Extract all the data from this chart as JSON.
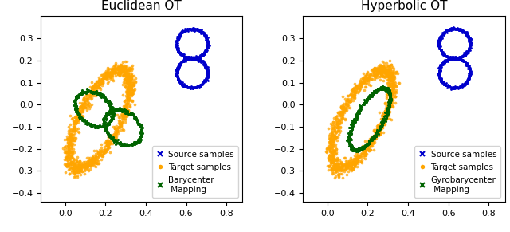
{
  "title_left": "Euclidean OT",
  "title_right": "Hyperbolic OT",
  "xlim": [
    -0.12,
    0.88
  ],
  "ylim": [
    -0.44,
    0.4
  ],
  "xticks": [
    0.0,
    0.2,
    0.4,
    0.6,
    0.8
  ],
  "yticks": [
    -0.4,
    -0.3,
    -0.2,
    -0.1,
    0.0,
    0.1,
    0.2,
    0.3
  ],
  "source_color": "#0000cc",
  "target_color": "#ffa500",
  "barycenter_color": "#006400",
  "figsize": [
    6.4,
    2.91
  ],
  "dpi": 100,
  "random_seed": 42,
  "n_target": 1200,
  "n_source": 800,
  "n_bary": 600
}
